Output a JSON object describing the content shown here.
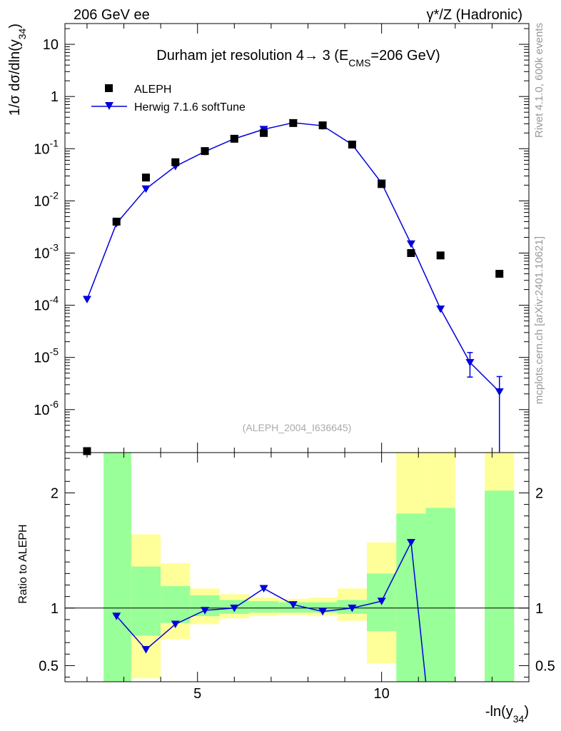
{
  "header": {
    "left_label": "206 GeV ee",
    "right_label": "γ*/Z (Hadronic)"
  },
  "side_labels": {
    "rivet": "Rivet 4.1.0,  600k events",
    "mcplots": "mcplots.cern.ch [arXiv:2401.10621]"
  },
  "watermark": "(ALEPH_2004_I636645)",
  "colors": {
    "mc": "#0000dd",
    "band_inner": "#99ff99",
    "band_outer": "#ffff99",
    "data": "#000000"
  },
  "chart_data": {
    "type": "scatter",
    "title": "Durham jet resolution 4→ 3 (E_CMS=206 GeV)",
    "title_parts": {
      "main": "Durham jet resolution 4→  3 (E",
      "sub": "CMS",
      "tail": "=206 GeV)"
    },
    "xlabel": {
      "main": "-ln(y",
      "sub": "34",
      "tail": ")"
    },
    "ylabel": {
      "main": "1/σ  dσ/dln(y",
      "sub": "34",
      "tail": ")"
    },
    "ratio_ylabel": "Ratio to ALEPH",
    "xlim": [
      1.4,
      14.0
    ],
    "ylim_log": [
      1.5e-07,
      25
    ],
    "ratio_ylim": [
      0.36,
      2.35
    ],
    "x_ticks": [
      5,
      10
    ],
    "x_tick_labels": [
      "5",
      "10"
    ],
    "y_ticks": [
      {
        "exp": -6,
        "label": "10",
        "sup": "-6"
      },
      {
        "exp": -5,
        "label": "10",
        "sup": "-5"
      },
      {
        "exp": -4,
        "label": "10",
        "sup": "-4"
      },
      {
        "exp": -3,
        "label": "10",
        "sup": "-3"
      },
      {
        "exp": -2,
        "label": "10",
        "sup": "-2"
      },
      {
        "exp": -1,
        "label": "10",
        "sup": "-1"
      },
      {
        "exp": 0,
        "label": "1",
        "sup": ""
      },
      {
        "exp": 1,
        "label": "10",
        "sup": ""
      }
    ],
    "ratio_ticks": [
      {
        "value": 0.5,
        "label": "0.5"
      },
      {
        "value": 1,
        "label": "1"
      },
      {
        "value": 2,
        "label": "2"
      }
    ],
    "legend": {
      "position": "top-left",
      "data_label": "ALEPH",
      "mc_label": "Herwig 7.1.6 softTune"
    },
    "series": [
      {
        "name": "ALEPH",
        "x": [
          2.0,
          2.8,
          3.6,
          4.4,
          5.2,
          6.0,
          6.8,
          7.6,
          8.4,
          9.2,
          10.0,
          10.8,
          11.6,
          13.2
        ],
        "values": [
          1.6e-07,
          0.004,
          0.028,
          0.055,
          0.09,
          0.155,
          0.2,
          0.31,
          0.28,
          0.12,
          0.021,
          0.001,
          0.0009,
          0.0004
        ]
      },
      {
        "name": "Herwig 7.1.6 softTune",
        "x": [
          2.0,
          2.8,
          3.6,
          4.4,
          5.2,
          6.0,
          6.8,
          7.6,
          8.4,
          9.2,
          10.0,
          10.8,
          11.6,
          12.4,
          13.2
        ],
        "values": [
          0.00013,
          0.0037,
          0.017,
          0.046,
          0.088,
          0.155,
          0.235,
          0.315,
          0.275,
          0.12,
          0.022,
          0.0015,
          8.5e-05,
          8e-06,
          2.2e-06
        ],
        "err_low": [
          0,
          0,
          0,
          0,
          0,
          0,
          0.01,
          0,
          0,
          0,
          0,
          0,
          0,
          3.8e-06,
          2.05e-06
        ],
        "err_high": [
          0,
          0,
          0,
          0,
          0,
          0,
          0.01,
          0,
          0,
          0,
          0,
          0,
          0,
          4.4e-06,
          2.1e-06
        ]
      }
    ],
    "ratio": {
      "x": [
        2.8,
        3.6,
        4.4,
        5.2,
        6.0,
        6.8,
        7.6,
        8.4,
        9.2,
        10.0,
        10.8,
        11.2
      ],
      "values": [
        0.93,
        0.64,
        0.86,
        0.98,
        1.0,
        1.17,
        1.03,
        0.97,
        1.0,
        1.06,
        1.57,
        0.3
      ]
    },
    "bands": [
      {
        "x0": 2.45,
        "x1": 3.2,
        "inner": [
          0.3,
          2.4
        ],
        "outer": [
          0.3,
          2.4
        ]
      },
      {
        "x0": 3.2,
        "x1": 4.0,
        "inner": [
          0.76,
          1.36
        ],
        "outer": [
          0.39,
          1.64
        ]
      },
      {
        "x0": 4.0,
        "x1": 4.8,
        "inner": [
          0.87,
          1.19
        ],
        "outer": [
          0.73,
          1.39
        ]
      },
      {
        "x0": 4.8,
        "x1": 5.6,
        "inner": [
          0.93,
          1.11
        ],
        "outer": [
          0.86,
          1.17
        ]
      },
      {
        "x0": 5.6,
        "x1": 6.4,
        "inner": [
          0.95,
          1.07
        ],
        "outer": [
          0.91,
          1.12
        ]
      },
      {
        "x0": 6.4,
        "x1": 7.2,
        "inner": [
          0.96,
          1.06
        ],
        "outer": [
          0.93,
          1.09
        ]
      },
      {
        "x0": 7.2,
        "x1": 8.0,
        "inner": [
          0.96,
          1.05
        ],
        "outer": [
          0.94,
          1.08
        ]
      },
      {
        "x0": 8.0,
        "x1": 8.8,
        "inner": [
          0.96,
          1.05
        ],
        "outer": [
          0.93,
          1.09
        ]
      },
      {
        "x0": 8.8,
        "x1": 9.6,
        "inner": [
          0.95,
          1.07
        ],
        "outer": [
          0.89,
          1.17
        ]
      },
      {
        "x0": 9.6,
        "x1": 10.4,
        "inner": [
          0.8,
          1.3
        ],
        "outer": [
          0.52,
          1.57
        ]
      },
      {
        "x0": 10.4,
        "x1": 11.2,
        "inner": [
          0.3,
          1.82
        ],
        "outer": [
          0.3,
          2.4
        ]
      },
      {
        "x0": 11.2,
        "x1": 12.0,
        "inner": [
          0.3,
          1.87
        ],
        "outer": [
          0.3,
          2.4
        ]
      },
      {
        "x0": 12.8,
        "x1": 13.6,
        "inner": [
          0.3,
          2.02
        ],
        "outer": [
          0.3,
          2.4
        ]
      }
    ]
  }
}
